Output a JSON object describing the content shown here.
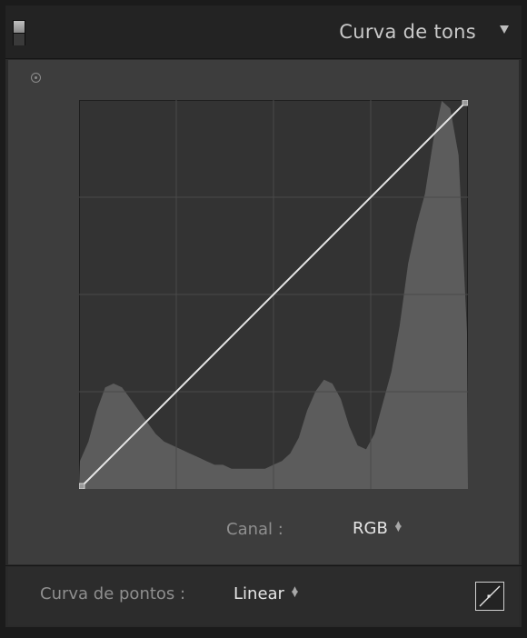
{
  "panel": {
    "title": "Curva de tons",
    "solo_icon": "panel-solo-toggle-icon",
    "collapse_icon": "triangle-down-icon"
  },
  "curve": {
    "target_tool_icon": "target-adjustment-icon",
    "type": "linear",
    "points": [
      [
        0,
        0
      ],
      [
        255,
        255
      ]
    ],
    "grid_divisions": 4,
    "histogram": [
      0.07,
      0.12,
      0.2,
      0.26,
      0.27,
      0.26,
      0.23,
      0.2,
      0.17,
      0.14,
      0.12,
      0.11,
      0.1,
      0.09,
      0.08,
      0.07,
      0.06,
      0.06,
      0.05,
      0.05,
      0.05,
      0.05,
      0.05,
      0.06,
      0.07,
      0.09,
      0.13,
      0.2,
      0.25,
      0.28,
      0.27,
      0.23,
      0.16,
      0.11,
      0.1,
      0.14,
      0.22,
      0.3,
      0.42,
      0.58,
      0.68,
      0.76,
      0.9,
      1.0,
      0.98,
      0.86,
      0.4
    ],
    "colors": {
      "histogram_bg": "#333333",
      "histogram_fill": "#5c5c5c",
      "grid": "#4a4a4a",
      "line": "#e6e6e6"
    }
  },
  "channel": {
    "label": "Canal :",
    "value": "RGB"
  },
  "point_curve": {
    "label": "Curva de pontos :",
    "value": "Linear",
    "edit_icon": "point-curve-edit-icon"
  }
}
